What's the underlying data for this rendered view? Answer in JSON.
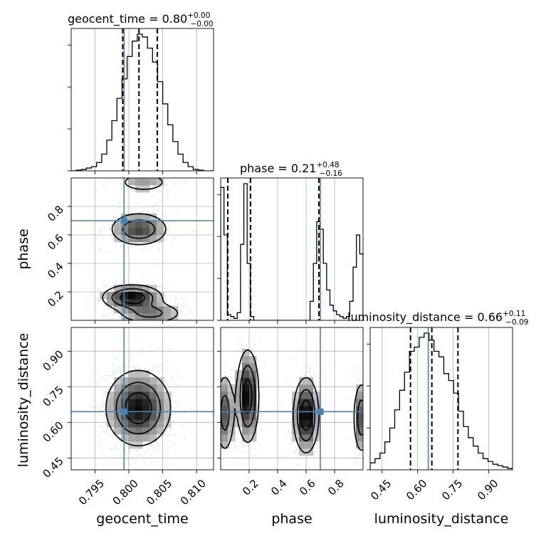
{
  "figure_type": "corner plot",
  "colors": {
    "truth": "#4682b4",
    "contour": "#000000",
    "grid": "#b0b0b0",
    "points": "#9a9a9a"
  },
  "truths": {
    "geocent_time": 0.7993,
    "phase": 0.7,
    "luminosity_distance": 0.645
  },
  "titles": {
    "geocent_time": {
      "text": "geocent_time = 0.80",
      "sup": "+0.00",
      "sub": "−0.00"
    },
    "phase": {
      "text": "phase = 0.21",
      "sup": "+0.48",
      "sub": "−0.16"
    },
    "luminosity_distance": {
      "text": "luminosity_distance = 0.66",
      "sup": "+0.11",
      "sub": "−0.09"
    }
  },
  "axis_labels": {
    "x": [
      "geocent_time",
      "phase",
      "luminosity_distance"
    ],
    "y": [
      "phase",
      "luminosity_distance"
    ]
  },
  "chart_data": {
    "type": "corner",
    "parameters": [
      "geocent_time",
      "phase",
      "luminosity_distance"
    ],
    "ranges": {
      "geocent_time": [
        0.7915,
        0.8125
      ],
      "phase": [
        0.0,
        1.0
      ],
      "luminosity_distance": [
        0.4,
        1.0
      ]
    },
    "ticks": {
      "geocent_time": [
        0.795,
        0.8,
        0.805,
        0.81
      ],
      "phase": [
        0.2,
        0.4,
        0.6,
        0.8
      ],
      "luminosity_distance": [
        0.45,
        0.6,
        0.75,
        0.9
      ]
    },
    "tick_labels": {
      "geocent_time": [
        "0.795",
        "0.800",
        "0.805",
        "0.810"
      ],
      "phase": [
        "0.2",
        "0.4",
        "0.6",
        "0.8"
      ],
      "luminosity_distance": [
        "0.45",
        "0.60",
        "0.75",
        "0.90"
      ]
    },
    "quantiles": {
      "geocent_time": [
        0.7991,
        0.8015,
        0.8042
      ],
      "phase": [
        0.05,
        0.21,
        0.69
      ],
      "luminosity_distance": [
        0.57,
        0.66,
        0.77
      ]
    },
    "histograms": {
      "geocent_time": {
        "bins": [
          0.7915,
          0.8125
        ],
        "counts": [
          0,
          0.5,
          1,
          2,
          3,
          6,
          12,
          22,
          36,
          52,
          66,
          82,
          93,
          98,
          96,
          88,
          78,
          64,
          48,
          33,
          21,
          12,
          6,
          3,
          1,
          0.5,
          0,
          0
        ]
      },
      "phase": {
        "bins": [
          0.0,
          1.0
        ],
        "counts": [
          70,
          45,
          3,
          2,
          1,
          4,
          40,
          72,
          30,
          2,
          0,
          0,
          0,
          0,
          0,
          0,
          0,
          0,
          0,
          0,
          0,
          0,
          0,
          0,
          0,
          0,
          0,
          10,
          30,
          52,
          48,
          30,
          16,
          8,
          5,
          3,
          2,
          1,
          2,
          10,
          28,
          45,
          35
        ]
      },
      "luminosity_distance": {
        "bins": [
          0.4,
          1.0
        ],
        "counts": [
          5,
          8,
          12,
          20,
          30,
          43,
          57,
          70,
          85,
          88,
          95,
          98,
          93,
          85,
          81,
          69,
          64,
          55,
          42,
          31,
          23,
          17,
          12,
          8,
          6,
          4,
          3,
          2,
          1
        ]
      }
    },
    "pairs": [
      {
        "x": "geocent_time",
        "y": "phase",
        "modes": [
          {
            "mx": 0.8005,
            "my": 0.16,
            "sx": 0.0022,
            "sy": 0.045,
            "w": 0.4
          },
          {
            "mx": 0.8032,
            "my": 0.05,
            "sx": 0.0025,
            "sy": 0.04,
            "w": 0.2
          },
          {
            "mx": 0.8015,
            "my": 0.64,
            "sx": 0.0022,
            "sy": 0.06,
            "w": 0.28
          },
          {
            "mx": 0.8022,
            "my": 0.97,
            "sx": 0.0022,
            "sy": 0.04,
            "w": 0.12
          }
        ]
      },
      {
        "x": "geocent_time",
        "y": "luminosity_distance",
        "modes": [
          {
            "mx": 0.8014,
            "my": 0.66,
            "sx": 0.0024,
            "sy": 0.08,
            "w": 1.0
          }
        ]
      },
      {
        "x": "phase",
        "y": "luminosity_distance",
        "modes": [
          {
            "mx": 0.03,
            "my": 0.64,
            "sx": 0.035,
            "sy": 0.09,
            "w": 0.18
          },
          {
            "mx": 0.19,
            "my": 0.71,
            "sx": 0.04,
            "sy": 0.1,
            "w": 0.3
          },
          {
            "mx": 0.6,
            "my": 0.63,
            "sx": 0.045,
            "sy": 0.08,
            "w": 0.32
          },
          {
            "mx": 0.99,
            "my": 0.62,
            "sx": 0.03,
            "sy": 0.08,
            "w": 0.2
          }
        ]
      }
    ]
  }
}
